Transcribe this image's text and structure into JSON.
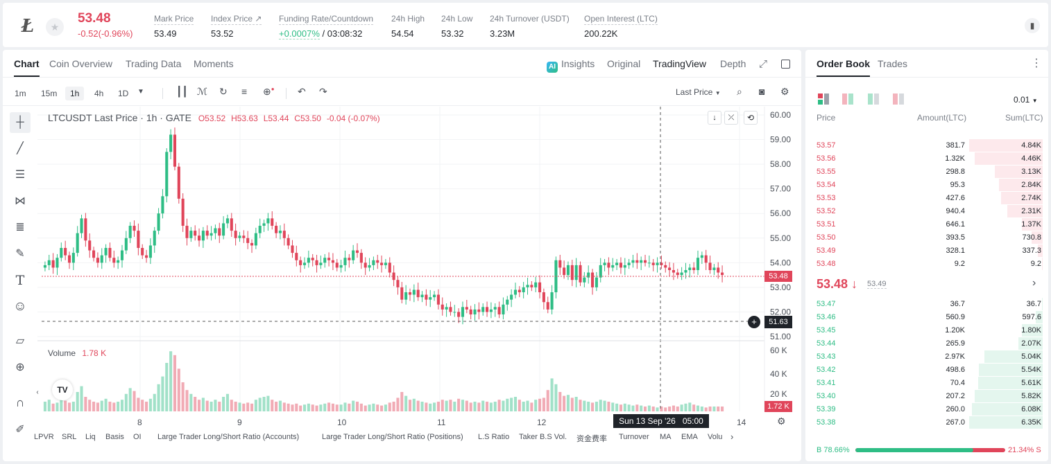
{
  "header": {
    "coin_logo": "Ł",
    "last_price": "53.48",
    "change": "-0.52(-0.96%)",
    "stats": [
      {
        "label": "Mark Price",
        "value": "53.49"
      },
      {
        "label": "Index Price ↗",
        "value": "53.52"
      },
      {
        "label": "Funding Rate/Countdown",
        "value_green": "+0.0007%",
        "value": " / 03:08:32"
      },
      {
        "label": "24h High",
        "value": "54.54"
      },
      {
        "label": "24h Low",
        "value": "53.32"
      },
      {
        "label": "24h Turnover (USDT)",
        "value": "3.23M"
      },
      {
        "label": "Open Interest (LTC)",
        "value": "200.22K"
      }
    ]
  },
  "chart_tabs": {
    "chart": "Chart",
    "coin_overview": "Coin Overview",
    "trading_data": "Trading Data",
    "moments": "Moments"
  },
  "view_tabs": {
    "ai": "AI",
    "insights": "Insights",
    "original": "Original",
    "tradingview": "TradingView",
    "depth": "Depth"
  },
  "timeframes": [
    "1m",
    "15m",
    "1h",
    "4h",
    "1D"
  ],
  "active_timeframe": "1h",
  "price_type": "Last Price",
  "legend": {
    "symbol": "LTCUSDT Last Price · 1h · GATE",
    "o": "O53.52",
    "h": "H53.63",
    "l": "L53.44",
    "c": "C53.50",
    "chg": "-0.04 (-0.07%)"
  },
  "volume_legend": {
    "label": "Volume",
    "value": "1.78 K"
  },
  "price_axis": [
    "60.00",
    "59.00",
    "58.00",
    "57.00",
    "56.00",
    "55.00",
    "54.00",
    "53.00",
    "52.00",
    "51.00"
  ],
  "vol_axis": [
    "60 K",
    "40 K",
    "20 K"
  ],
  "time_axis": [
    "8",
    "9",
    "10",
    "11",
    "12",
    "14"
  ],
  "price_tag": "53.48",
  "crosshair_price": "51.63",
  "crosshair_time": "Sun 13 Sep '26   05:00",
  "vol_tag": "1.72 K",
  "indicators": [
    "LPVR",
    "SRL",
    "Liq",
    "Basis",
    "OI",
    "Large Trader Long/Short Ratio (Accounts)",
    "Large Trader Long/Short Ratio (Positions)",
    "L.S Ratio",
    "Taker B.S Vol.",
    "资金费率",
    "Turnover",
    "MA",
    "EMA",
    "Volu"
  ],
  "chart_data": {
    "type": "candlestick",
    "title": "LTCUSDT Last Price · 1h · GATE",
    "ylim": [
      51,
      60
    ],
    "x_ticks": [
      "8",
      "9",
      "10",
      "11",
      "12",
      "14"
    ],
    "closes": [
      53.9,
      54.1,
      53.8,
      54.2,
      54.6,
      54.3,
      54.0,
      54.4,
      55.2,
      55.8,
      54.9,
      54.5,
      54.2,
      54.0,
      54.3,
      54.6,
      54.2,
      54.0,
      54.1,
      54.5,
      55.0,
      55.5,
      55.3,
      54.6,
      54.3,
      54.2,
      54.7,
      55.3,
      56.0,
      56.7,
      58.5,
      59.2,
      57.9,
      56.6,
      55.5,
      55.0,
      55.3,
      55.1,
      54.9,
      55.3,
      55.1,
      55.2,
      55.4,
      55.1,
      55.6,
      55.8,
      55.3,
      55.0,
      55.1,
      55.0,
      54.8,
      54.7,
      55.2,
      55.5,
      55.6,
      55.8,
      55.5,
      55.2,
      55.3,
      55.0,
      54.7,
      54.4,
      54.1,
      53.9,
      54.0,
      54.2,
      54.1,
      53.9,
      54.0,
      54.2,
      54.1,
      54.0,
      53.8,
      53.9,
      54.2,
      54.1,
      54.5,
      54.4,
      54.0,
      53.8,
      53.9,
      54.1,
      54.0,
      53.9,
      54.0,
      53.6,
      53.3,
      53.0,
      52.5,
      52.8,
      52.7,
      52.9,
      52.6,
      52.7,
      52.5,
      52.6,
      52.7,
      52.3,
      52.1,
      52.2,
      52.0,
      52.0,
      51.8,
      52.2,
      52.1,
      51.9,
      52.1,
      52.0,
      52.2,
      52.0,
      52.1,
      52.2,
      51.9,
      52.3,
      52.5,
      52.7,
      52.9,
      52.8,
      53.0,
      53.1,
      53.0,
      53.2,
      52.8,
      52.4,
      52.1,
      52.8,
      54.1,
      53.8,
      53.5,
      53.9,
      53.3,
      53.9,
      53.2,
      53.4,
      53.6,
      53.0,
      53.4,
      53.9,
      54.0,
      53.8,
      53.9,
      54.0,
      53.8,
      53.9,
      54.0,
      54.1,
      54.0,
      54.1,
      54.0,
      54.0,
      53.9,
      54.0,
      53.9,
      53.8,
      53.7,
      53.6,
      53.5,
      53.6,
      53.7,
      53.8,
      53.7,
      54.2,
      54.3,
      54.0,
      53.7,
      53.8,
      53.6,
      53.5
    ],
    "volumes_k": [
      10,
      12,
      8,
      9,
      14,
      11,
      9,
      10,
      20,
      26,
      15,
      12,
      10,
      9,
      11,
      13,
      10,
      9,
      10,
      12,
      18,
      24,
      21,
      14,
      12,
      10,
      13,
      18,
      28,
      36,
      50,
      62,
      58,
      44,
      30,
      22,
      18,
      15,
      12,
      14,
      11,
      10,
      12,
      10,
      15,
      18,
      12,
      10,
      9,
      8,
      9,
      8,
      12,
      14,
      15,
      16,
      12,
      10,
      11,
      9,
      8,
      7,
      8,
      6,
      7,
      8,
      7,
      6,
      7,
      8,
      9,
      8,
      7,
      7,
      9,
      8,
      11,
      10,
      8,
      6,
      7,
      8,
      7,
      6,
      7,
      9,
      10,
      14,
      20,
      16,
      12,
      13,
      11,
      10,
      9,
      8,
      9,
      10,
      12,
      11,
      12,
      10,
      13,
      12,
      11,
      9,
      10,
      9,
      11,
      10,
      9,
      10,
      12,
      11,
      13,
      14,
      15,
      12,
      10,
      11,
      9,
      12,
      13,
      14,
      22,
      34,
      28,
      20,
      16,
      17,
      14,
      15,
      12,
      11,
      10,
      9,
      10,
      12,
      11,
      10,
      9,
      8,
      7,
      8,
      7,
      6,
      7,
      6,
      5,
      6,
      5,
      4,
      5,
      4,
      5,
      6,
      5,
      7,
      8,
      9,
      7,
      6,
      5,
      4
    ],
    "ylabel": "",
    "xlabel": ""
  },
  "orderbook": {
    "tab_book": "Order Book",
    "tab_trades": "Trades",
    "precision": "0.01",
    "col_price": "Price",
    "col_amount": "Amount(LTC)",
    "col_sum": "Sum(LTC)",
    "asks": [
      {
        "p": "53.57",
        "a": "381.7",
        "s": "4.84K",
        "d": 1.0
      },
      {
        "p": "53.56",
        "a": "1.32K",
        "s": "4.46K",
        "d": 0.92
      },
      {
        "p": "53.55",
        "a": "298.8",
        "s": "3.13K",
        "d": 0.65
      },
      {
        "p": "53.54",
        "a": "95.3",
        "s": "2.84K",
        "d": 0.59
      },
      {
        "p": "53.53",
        "a": "427.6",
        "s": "2.74K",
        "d": 0.57
      },
      {
        "p": "53.52",
        "a": "940.4",
        "s": "2.31K",
        "d": 0.48
      },
      {
        "p": "53.51",
        "a": "646.1",
        "s": "1.37K",
        "d": 0.28
      },
      {
        "p": "53.50",
        "a": "393.5",
        "s": "730.8",
        "d": 0.15
      },
      {
        "p": "53.49",
        "a": "328.1",
        "s": "337.3",
        "d": 0.07
      },
      {
        "p": "53.48",
        "a": "9.2",
        "s": "9.2",
        "d": 0.01
      }
    ],
    "mid_price": "53.48 ↓",
    "mark_price": "53.49",
    "bids": [
      {
        "p": "53.47",
        "a": "36.7",
        "s": "36.7",
        "d": 0.01
      },
      {
        "p": "53.46",
        "a": "560.9",
        "s": "597.6",
        "d": 0.09
      },
      {
        "p": "53.45",
        "a": "1.20K",
        "s": "1.80K",
        "d": 0.28
      },
      {
        "p": "53.44",
        "a": "265.9",
        "s": "2.07K",
        "d": 0.33
      },
      {
        "p": "53.43",
        "a": "2.97K",
        "s": "5.04K",
        "d": 0.79
      },
      {
        "p": "53.42",
        "a": "498.6",
        "s": "5.54K",
        "d": 0.87
      },
      {
        "p": "53.41",
        "a": "70.4",
        "s": "5.61K",
        "d": 0.88
      },
      {
        "p": "53.40",
        "a": "207.2",
        "s": "5.82K",
        "d": 0.92
      },
      {
        "p": "53.39",
        "a": "260.0",
        "s": "6.08K",
        "d": 0.96
      },
      {
        "p": "53.38",
        "a": "267.0",
        "s": "6.35K",
        "d": 1.0
      }
    ],
    "buy_ratio": "B 78.66%",
    "sell_ratio": "21.34% S",
    "buy_fraction": 0.7866
  },
  "colors": {
    "up": "#2ebd85",
    "down": "#e0455a"
  }
}
